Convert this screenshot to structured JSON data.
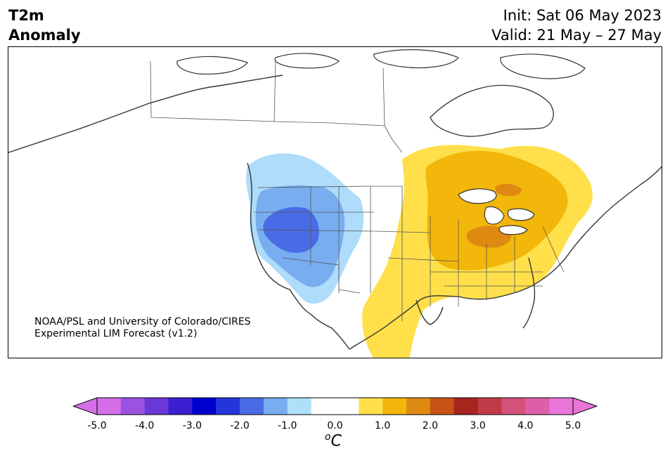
{
  "title": {
    "line1": "T2m",
    "line2": "Anomaly"
  },
  "dates": {
    "init": "Init: Sat 06 May 2023",
    "valid": "Valid: 21 May – 27 May"
  },
  "credit": {
    "line1": "NOAA/PSL and University of Colorado/CIRES",
    "line2": "Experimental LIM Forecast (v1.2)"
  },
  "colorbar": {
    "ticks": [
      "-5.0",
      "-4.0",
      "-3.0",
      "-2.0",
      "-1.0",
      "0.0",
      "1.0",
      "2.0",
      "3.0",
      "4.0",
      "5.0"
    ],
    "unit": "C",
    "unit_superscript": "o",
    "colors": [
      "#d46fe8",
      "#9b52e0",
      "#6a38d9",
      "#3a1fd1",
      "#0000cd",
      "#2436db",
      "#4a6be6",
      "#78aef0",
      "#aee0fa",
      "#ffffff",
      "#ffffff",
      "#ffe04a",
      "#f2b70a",
      "#de8a12",
      "#c75314",
      "#a8241f",
      "#c13a48",
      "#d4527a",
      "#dd5fa8",
      "#e876d8"
    ],
    "extend_low_color": "#d46fe8",
    "extend_high_color": "#e876d8"
  },
  "anomaly_colors": {
    "cold_light": "#aedcfa",
    "cold_mid": "#78aef0",
    "cold_strong": "#4a6be6",
    "warm_light": "#ffe04a",
    "warm_mid": "#f2b70a",
    "warm_strong": "#de8a12"
  }
}
